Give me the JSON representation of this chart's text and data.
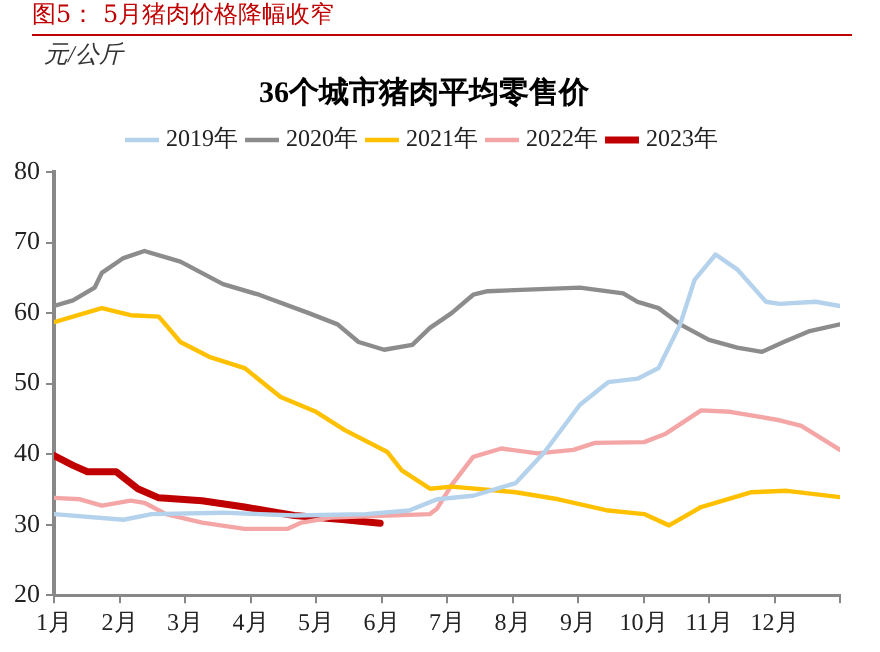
{
  "chart_data": {
    "type": "line",
    "title": "图5： 5月猪肉价格降幅收窄",
    "subtitle": "36个城市猪肉平均零售价",
    "ylabel": "元/公斤",
    "xlim": [
      1,
      13
    ],
    "xticks": [
      {
        "value": 1,
        "label": "1月"
      },
      {
        "value": 2,
        "label": "2月"
      },
      {
        "value": 3,
        "label": "3月"
      },
      {
        "value": 4,
        "label": "4月"
      },
      {
        "value": 5,
        "label": "5月"
      },
      {
        "value": 6,
        "label": "6月"
      },
      {
        "value": 7,
        "label": "7月"
      },
      {
        "value": 8,
        "label": "8月"
      },
      {
        "value": 9,
        "label": "9月"
      },
      {
        "value": 10,
        "label": "10月"
      },
      {
        "value": 11,
        "label": "11月"
      },
      {
        "value": 12,
        "label": "12月"
      },
      {
        "value": 13,
        "label": null
      }
    ],
    "ylim": [
      20,
      80
    ],
    "yticks": [
      20,
      30,
      40,
      50,
      60,
      70,
      80
    ],
    "grid": false,
    "legend": "top",
    "marker": "none",
    "line_style": "solid",
    "series": [
      {
        "name": "2019年",
        "color": "#b4d2ec",
        "x": [
          1,
          2.06,
          2.49,
          3.58,
          4.67,
          5.76,
          6.42,
          6.85,
          7.4,
          8.05,
          8.49,
          9.03,
          9.46,
          9.91,
          10.23,
          10.56,
          10.78,
          11.1,
          11.43,
          11.87,
          12.08,
          12.63,
          13
        ],
        "values": [
          31.5,
          30.7,
          31.5,
          31.7,
          31.3,
          31.5,
          32,
          33.6,
          34.1,
          35.9,
          40.3,
          47,
          50.2,
          50.7,
          52.2,
          58.4,
          64.7,
          68.3,
          66.2,
          61.6,
          61.3,
          61.6,
          61
        ]
      },
      {
        "name": "2020年",
        "color": "#8c8c8c",
        "x": [
          1,
          1.29,
          1.62,
          1.73,
          2.06,
          2.38,
          2.93,
          3.58,
          4.13,
          4.89,
          5.33,
          5.65,
          6.04,
          6.47,
          6.74,
          7.07,
          7.4,
          7.62,
          9.03,
          9.69,
          9.91,
          10.23,
          10.56,
          11,
          11.43,
          11.81,
          12.14,
          12.52,
          13
        ],
        "values": [
          61,
          61.8,
          63.6,
          65.7,
          67.8,
          68.8,
          67.3,
          64.1,
          62.6,
          60,
          58.4,
          55.9,
          54.8,
          55.5,
          57.9,
          60,
          62.6,
          63.1,
          63.6,
          62.8,
          61.6,
          60.7,
          58.4,
          56.2,
          55.1,
          54.5,
          55.9,
          57.4,
          58.4
        ]
      },
      {
        "name": "2021年",
        "color": "#ffc000",
        "x": [
          1,
          1.73,
          2.17,
          2.6,
          2.93,
          3.37,
          3.91,
          4.46,
          5,
          5.44,
          6.09,
          6.31,
          6.74,
          7.07,
          8.05,
          8.7,
          9.46,
          10.01,
          10.39,
          10.88,
          11.65,
          12.19,
          13
        ],
        "values": [
          58.7,
          60.7,
          59.7,
          59.5,
          55.9,
          53.8,
          52.2,
          48.1,
          46,
          43.4,
          40.3,
          37.7,
          35.1,
          35.4,
          34.6,
          33.6,
          32,
          31.5,
          29.9,
          32.5,
          34.6,
          34.8,
          33.9
        ]
      },
      {
        "name": "2022年",
        "color": "#f4a6a6",
        "x": [
          1,
          1.4,
          1.73,
          2.17,
          2.38,
          2.71,
          3.26,
          3.91,
          4.56,
          4.78,
          5.22,
          6.74,
          6.85,
          7.07,
          7.4,
          7.83,
          8.38,
          8.93,
          9.26,
          10.01,
          10.34,
          10.88,
          11.32,
          12.08,
          12.41,
          13
        ],
        "values": [
          33.8,
          33.6,
          32.7,
          33.4,
          33.1,
          31.5,
          30.3,
          29.4,
          29.4,
          30.3,
          31,
          31.5,
          32.3,
          35.6,
          39.6,
          40.8,
          40.1,
          40.6,
          41.6,
          41.7,
          42.9,
          46.2,
          46,
          44.8,
          44,
          40.6
        ]
      },
      {
        "name": "2023年",
        "color": "#c00000",
        "x": [
          1,
          1.29,
          1.51,
          1.95,
          2.28,
          2.6,
          3.26,
          3.91,
          4.67,
          5.44,
          5.98
        ],
        "values": [
          39.8,
          38.4,
          37.5,
          37.5,
          35.1,
          33.8,
          33.4,
          32.5,
          31.3,
          30.7,
          30.2
        ]
      }
    ]
  }
}
